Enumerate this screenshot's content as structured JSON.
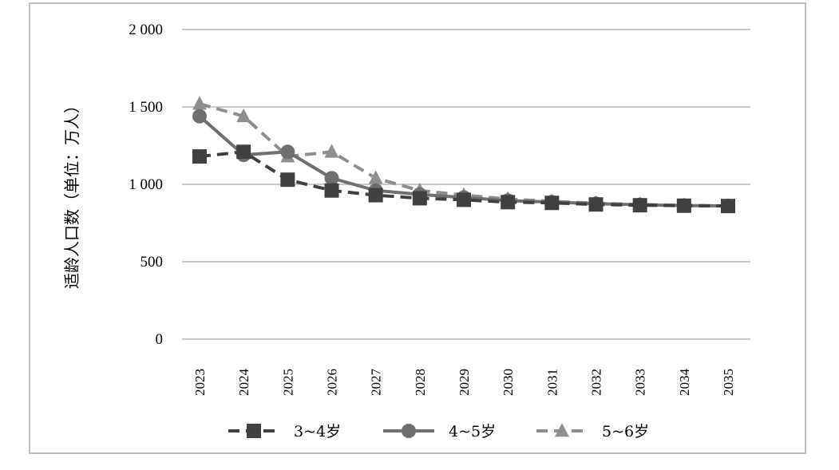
{
  "chart_data": {
    "type": "line",
    "title": "",
    "xlabel": "",
    "ylabel": "适龄人口数（单位：万人）",
    "ylim": [
      0,
      2000
    ],
    "yticks": [
      0,
      500,
      1000,
      1500,
      2000
    ],
    "ytick_labels": [
      "0",
      "500",
      "1 000",
      "1 500",
      "2 000"
    ],
    "grid": "horizontal",
    "legend_position": "bottom",
    "x": [
      "2023",
      "2024",
      "2025",
      "2026",
      "2027",
      "2028",
      "2029",
      "2030",
      "2031",
      "2032",
      "2033",
      "2034",
      "2035"
    ],
    "series": [
      {
        "name": "3~4岁",
        "marker": "square",
        "line": "dashed",
        "color": "#404040",
        "values": [
          1180,
          1210,
          1030,
          960,
          930,
          910,
          900,
          885,
          880,
          870,
          865,
          862,
          860
        ]
      },
      {
        "name": "4~5岁",
        "marker": "circle",
        "line": "solid",
        "color": "#6f6f6f",
        "values": [
          1440,
          1190,
          1210,
          1040,
          960,
          935,
          915,
          895,
          885,
          875,
          868,
          863,
          860
        ]
      },
      {
        "name": "5~6岁",
        "marker": "triangle",
        "line": "dashed",
        "color": "#8f8f8f",
        "values": [
          1520,
          1440,
          1180,
          1210,
          1040,
          960,
          930,
          905,
          890,
          878,
          870,
          864,
          860
        ]
      }
    ]
  }
}
